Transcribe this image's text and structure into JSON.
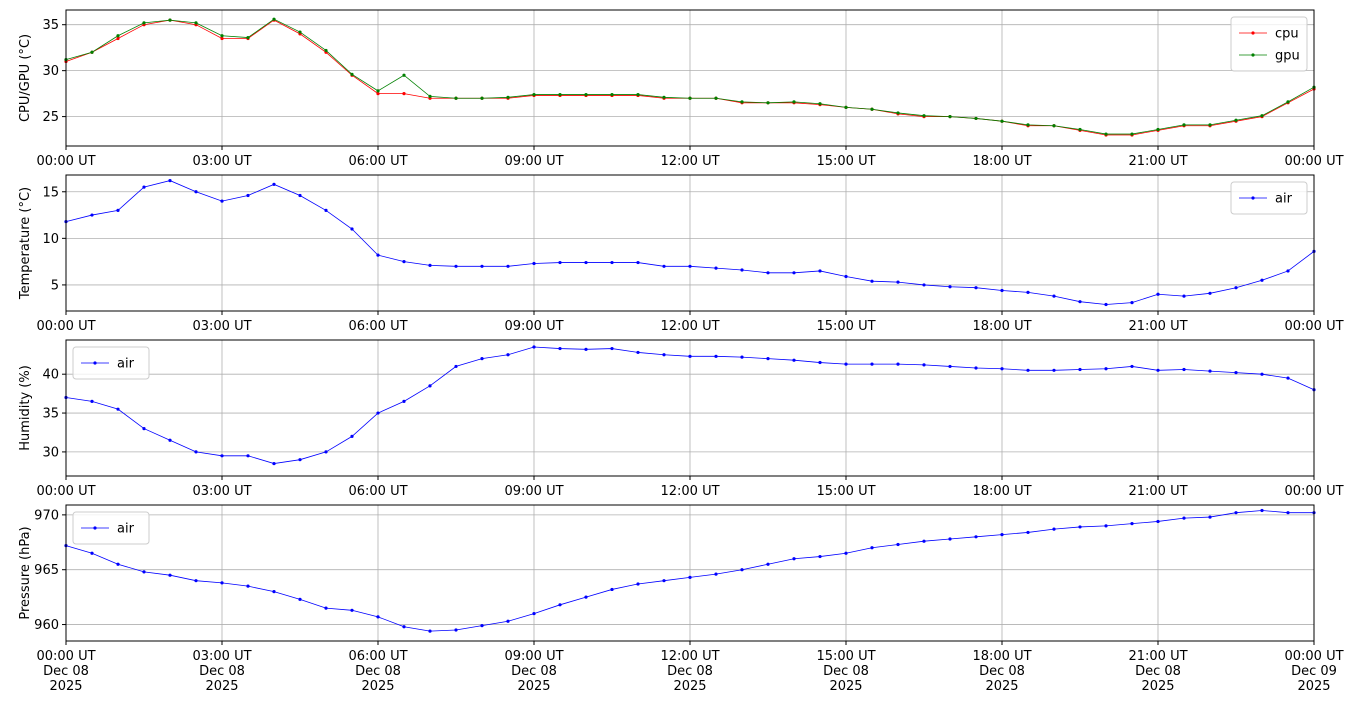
{
  "chart_data": [
    {
      "type": "line",
      "ylabel": "CPU/GPU (°C)",
      "legend": "upper right",
      "grid": true,
      "x": [
        0,
        0.5,
        1,
        1.5,
        2,
        2.5,
        3,
        3.5,
        4,
        4.5,
        5,
        5.5,
        6,
        6.5,
        7,
        7.5,
        8,
        8.5,
        9,
        9.5,
        10,
        10.5,
        11,
        11.5,
        12,
        12.5,
        13,
        13.5,
        14,
        14.5,
        15,
        15.5,
        16,
        16.5,
        17,
        17.5,
        18,
        18.5,
        19,
        19.5,
        20,
        20.5,
        21,
        21.5,
        22,
        22.5,
        23,
        23.5,
        24
      ],
      "series": [
        {
          "name": "cpu",
          "color": "#ff0000",
          "values": [
            31,
            32,
            33.5,
            35,
            35.5,
            35,
            33.5,
            33.5,
            35.5,
            34,
            32,
            29.5,
            27.5,
            27.5,
            27,
            27,
            27,
            27,
            27.3,
            27.3,
            27.3,
            27.3,
            27.3,
            27,
            27,
            27,
            26.5,
            26.5,
            26.5,
            26.3,
            26,
            25.8,
            25.3,
            25,
            25,
            24.8,
            24.5,
            24,
            24,
            23.5,
            23,
            23,
            23.5,
            24,
            24,
            24.5,
            25,
            26.5,
            28
          ]
        },
        {
          "name": "gpu",
          "color": "#008000",
          "values": [
            31.2,
            32,
            33.8,
            35.2,
            35.5,
            35.2,
            33.8,
            33.6,
            35.6,
            34.2,
            32.2,
            29.6,
            27.8,
            29.5,
            27.2,
            27,
            27,
            27.1,
            27.4,
            27.4,
            27.4,
            27.4,
            27.4,
            27.1,
            27,
            27,
            26.6,
            26.5,
            26.6,
            26.4,
            26,
            25.8,
            25.4,
            25.1,
            25,
            24.8,
            24.5,
            24.1,
            24,
            23.6,
            23.1,
            23.1,
            23.6,
            24.1,
            24.1,
            24.6,
            25.1,
            26.6,
            28.2
          ]
        }
      ],
      "xlim": [
        0,
        24
      ],
      "ylim": [
        21.8,
        36.6
      ],
      "yticks": [
        25,
        30,
        35
      ],
      "xticks": [
        {
          "value": 0,
          "label": "00:00 UT"
        },
        {
          "value": 3,
          "label": "03:00 UT"
        },
        {
          "value": 6,
          "label": "06:00 UT"
        },
        {
          "value": 9,
          "label": "09:00 UT"
        },
        {
          "value": 12,
          "label": "12:00 UT"
        },
        {
          "value": 15,
          "label": "15:00 UT"
        },
        {
          "value": 18,
          "label": "18:00 UT"
        },
        {
          "value": 21,
          "label": "21:00 UT"
        },
        {
          "value": 24,
          "label": "00:00 UT"
        }
      ]
    },
    {
      "type": "line",
      "ylabel": "Temperature (°C)",
      "legend": "upper right",
      "grid": true,
      "x": [
        0,
        0.5,
        1,
        1.5,
        2,
        2.5,
        3,
        3.5,
        4,
        4.5,
        5,
        5.5,
        6,
        6.5,
        7,
        7.5,
        8,
        8.5,
        9,
        9.5,
        10,
        10.5,
        11,
        11.5,
        12,
        12.5,
        13,
        13.5,
        14,
        14.5,
        15,
        15.5,
        16,
        16.5,
        17,
        17.5,
        18,
        18.5,
        19,
        19.5,
        20,
        20.5,
        21,
        21.5,
        22,
        22.5,
        23,
        23.5,
        24
      ],
      "series": [
        {
          "name": "air",
          "color": "#0000ff",
          "values": [
            11.8,
            12.5,
            13,
            15.5,
            16.2,
            15,
            14,
            14.6,
            15.8,
            14.6,
            13,
            11,
            8.2,
            7.5,
            7.1,
            7,
            7,
            7,
            7.3,
            7.4,
            7.4,
            7.4,
            7.4,
            7,
            7,
            6.8,
            6.6,
            6.3,
            6.3,
            6.5,
            5.9,
            5.4,
            5.3,
            5,
            4.8,
            4.7,
            4.4,
            4.2,
            3.8,
            3.2,
            2.9,
            3.1,
            4,
            3.8,
            4.1,
            4.7,
            5.5,
            6.5,
            8.6
          ]
        }
      ],
      "xlim": [
        0,
        24
      ],
      "ylim": [
        2.2,
        16.8
      ],
      "yticks": [
        5,
        10,
        15
      ],
      "xticks": [
        {
          "value": 0,
          "label": "00:00 UT"
        },
        {
          "value": 3,
          "label": "03:00 UT"
        },
        {
          "value": 6,
          "label": "06:00 UT"
        },
        {
          "value": 9,
          "label": "09:00 UT"
        },
        {
          "value": 12,
          "label": "12:00 UT"
        },
        {
          "value": 15,
          "label": "15:00 UT"
        },
        {
          "value": 18,
          "label": "18:00 UT"
        },
        {
          "value": 21,
          "label": "21:00 UT"
        },
        {
          "value": 24,
          "label": "00:00 UT"
        }
      ]
    },
    {
      "type": "line",
      "ylabel": "Humidity (%)",
      "legend": "upper left",
      "grid": true,
      "x": [
        0,
        0.5,
        1,
        1.5,
        2,
        2.5,
        3,
        3.5,
        4,
        4.5,
        5,
        5.5,
        6,
        6.5,
        7,
        7.5,
        8,
        8.5,
        9,
        9.5,
        10,
        10.5,
        11,
        11.5,
        12,
        12.5,
        13,
        13.5,
        14,
        14.5,
        15,
        15.5,
        16,
        16.5,
        17,
        17.5,
        18,
        18.5,
        19,
        19.5,
        20,
        20.5,
        21,
        21.5,
        22,
        22.5,
        23,
        23.5,
        24
      ],
      "series": [
        {
          "name": "air",
          "color": "#0000ff",
          "values": [
            37,
            36.5,
            35.5,
            33,
            31.5,
            30,
            29.5,
            29.5,
            28.5,
            29,
            30,
            32,
            35,
            36.5,
            38.5,
            41,
            42,
            42.5,
            43.5,
            43.3,
            43.2,
            43.3,
            42.8,
            42.5,
            42.3,
            42.3,
            42.2,
            42,
            41.8,
            41.5,
            41.3,
            41.3,
            41.3,
            41.2,
            41,
            40.8,
            40.7,
            40.5,
            40.5,
            40.6,
            40.7,
            41,
            40.5,
            40.6,
            40.4,
            40.2,
            40,
            39.5,
            38
          ]
        }
      ],
      "xlim": [
        0,
        24
      ],
      "ylim": [
        26.9,
        44.4
      ],
      "yticks": [
        30,
        35,
        40
      ],
      "xticks": [
        {
          "value": 0,
          "label": "00:00 UT"
        },
        {
          "value": 3,
          "label": "03:00 UT"
        },
        {
          "value": 6,
          "label": "06:00 UT"
        },
        {
          "value": 9,
          "label": "09:00 UT"
        },
        {
          "value": 12,
          "label": "12:00 UT"
        },
        {
          "value": 15,
          "label": "15:00 UT"
        },
        {
          "value": 18,
          "label": "18:00 UT"
        },
        {
          "value": 21,
          "label": "21:00 UT"
        },
        {
          "value": 24,
          "label": "00:00 UT"
        }
      ]
    },
    {
      "type": "line",
      "ylabel": "Pressure (hPa)",
      "legend": "upper left",
      "grid": true,
      "x": [
        0,
        0.5,
        1,
        1.5,
        2,
        2.5,
        3,
        3.5,
        4,
        4.5,
        5,
        5.5,
        6,
        6.5,
        7,
        7.5,
        8,
        8.5,
        9,
        9.5,
        10,
        10.5,
        11,
        11.5,
        12,
        12.5,
        13,
        13.5,
        14,
        14.5,
        15,
        15.5,
        16,
        16.5,
        17,
        17.5,
        18,
        18.5,
        19,
        19.5,
        20,
        20.5,
        21,
        21.5,
        22,
        22.5,
        23,
        23.5,
        24
      ],
      "series": [
        {
          "name": "air",
          "color": "#0000ff",
          "values": [
            967.2,
            966.5,
            965.5,
            964.8,
            964.5,
            964,
            963.8,
            963.5,
            963,
            962.3,
            961.5,
            961.3,
            960.7,
            959.8,
            959.4,
            959.5,
            959.9,
            960.3,
            961,
            961.8,
            962.5,
            963.2,
            963.7,
            964,
            964.3,
            964.6,
            965,
            965.5,
            966,
            966.2,
            966.5,
            967,
            967.3,
            967.6,
            967.8,
            968,
            968.2,
            968.4,
            968.7,
            968.9,
            969,
            969.2,
            969.4,
            969.7,
            969.8,
            970.2,
            970.4,
            970.2,
            970.2
          ]
        }
      ],
      "xlim": [
        0,
        24
      ],
      "ylim": [
        958.5,
        970.9
      ],
      "yticks": [
        960,
        965,
        970
      ],
      "xticks": [
        {
          "value": 0,
          "label": "00:00 UT\nDec 08\n2025"
        },
        {
          "value": 3,
          "label": "03:00 UT\nDec 08\n2025"
        },
        {
          "value": 6,
          "label": "06:00 UT\nDec 08\n2025"
        },
        {
          "value": 9,
          "label": "09:00 UT\nDec 08\n2025"
        },
        {
          "value": 12,
          "label": "12:00 UT\nDec 08\n2025"
        },
        {
          "value": 15,
          "label": "15:00 UT\nDec 08\n2025"
        },
        {
          "value": 18,
          "label": "18:00 UT\nDec 08\n2025"
        },
        {
          "value": 21,
          "label": "21:00 UT\nDec 08\n2025"
        },
        {
          "value": 24,
          "label": "00:00 UT\nDec 09\n2025"
        }
      ]
    }
  ]
}
